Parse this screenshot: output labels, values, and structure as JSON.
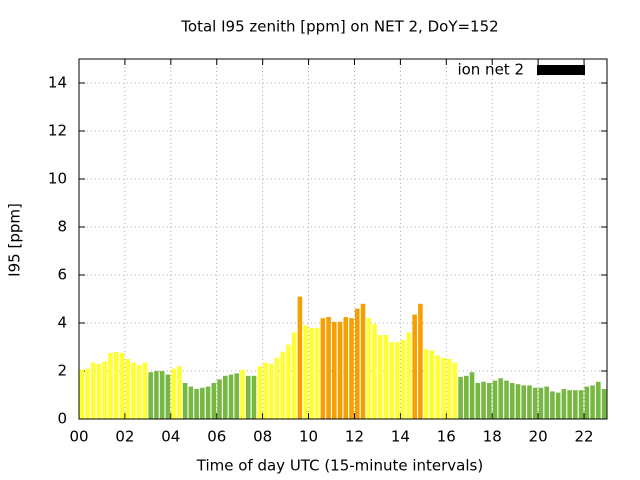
{
  "chart_data": {
    "type": "bar",
    "title": "Total I95 zenith [ppm] on NET 2, DoY=152",
    "xlabel": "Time of day UTC (15-minute intervals)",
    "ylabel": "I95 [ppm]",
    "x": [
      0,
      0.25,
      0.5,
      0.75,
      1,
      1.25,
      1.5,
      1.75,
      2,
      2.25,
      2.5,
      2.75,
      3,
      3.25,
      3.5,
      3.75,
      4,
      4.25,
      4.5,
      4.75,
      5,
      5.25,
      5.5,
      5.75,
      6,
      6.25,
      6.5,
      6.75,
      7,
      7.25,
      7.5,
      7.75,
      8,
      8.25,
      8.5,
      8.75,
      9,
      9.25,
      9.5,
      9.75,
      10,
      10.25,
      10.5,
      10.75,
      11,
      11.25,
      11.5,
      11.75,
      12,
      12.25,
      12.5,
      12.75,
      13,
      13.25,
      13.5,
      13.75,
      14,
      14.25,
      14.5,
      14.75,
      15,
      15.25,
      15.5,
      15.75,
      16,
      16.25,
      16.5,
      16.75,
      17,
      17.25,
      17.5,
      17.75,
      18,
      18.25,
      18.5,
      18.75,
      19,
      19.25,
      19.5,
      19.75,
      20,
      20.25,
      20.5,
      20.75,
      21,
      21.25,
      21.5,
      21.75,
      22,
      22.25,
      22.5,
      22.75
    ],
    "series": [
      {
        "name": "ion net 2",
        "color": "#000000",
        "values": [
          2.05,
          2.1,
          2.35,
          2.3,
          2.4,
          2.75,
          2.8,
          2.75,
          2.5,
          2.35,
          2.25,
          2.35,
          1.95,
          2.0,
          2.0,
          1.85,
          2.1,
          2.2,
          1.5,
          1.35,
          1.25,
          1.3,
          1.35,
          1.5,
          1.65,
          1.8,
          1.85,
          1.9,
          2.05,
          1.8,
          1.8,
          2.2,
          2.35,
          2.3,
          2.55,
          2.8,
          3.1,
          3.6,
          5.1,
          3.9,
          3.8,
          3.8,
          4.2,
          4.25,
          4.05,
          4.05,
          4.25,
          4.2,
          4.6,
          4.8,
          4.2,
          3.95,
          3.5,
          3.5,
          3.2,
          3.2,
          3.3,
          3.6,
          4.35,
          4.8,
          2.9,
          2.85,
          2.65,
          2.55,
          2.5,
          2.35,
          1.75,
          1.8,
          1.95,
          1.5,
          1.55,
          1.5,
          1.6,
          1.7,
          1.6,
          1.5,
          1.45,
          1.4,
          1.4,
          1.3,
          1.3,
          1.35,
          1.15,
          1.1,
          1.25,
          1.2,
          1.2,
          1.2,
          1.35,
          1.4,
          1.55,
          1.25
        ],
        "bar_colors": [
          "#ffff33",
          "#ffff33",
          "#ffff33",
          "#ffff33",
          "#ffff33",
          "#ffff33",
          "#ffff33",
          "#ffff33",
          "#ffff33",
          "#ffff33",
          "#ffff33",
          "#ffff33",
          "#77b843",
          "#77b843",
          "#77b843",
          "#77b843",
          "#ffff33",
          "#ffff33",
          "#77b843",
          "#77b843",
          "#77b843",
          "#77b843",
          "#77b843",
          "#77b843",
          "#77b843",
          "#77b843",
          "#77b843",
          "#77b843",
          "#ffff33",
          "#77b843",
          "#77b843",
          "#ffff33",
          "#ffff33",
          "#ffff33",
          "#ffff33",
          "#ffff33",
          "#ffff33",
          "#ffff33",
          "#f5a000",
          "#ffff33",
          "#ffff33",
          "#ffff33",
          "#f5a000",
          "#f5a000",
          "#f5a000",
          "#f5a000",
          "#f5a000",
          "#f5a000",
          "#f5a000",
          "#f5a000",
          "#ffff33",
          "#ffff33",
          "#ffff33",
          "#ffff33",
          "#ffff33",
          "#ffff33",
          "#ffff33",
          "#ffff33",
          "#f5a000",
          "#f5a000",
          "#ffff33",
          "#ffff33",
          "#ffff33",
          "#ffff33",
          "#ffff33",
          "#ffff33",
          "#77b843",
          "#77b843",
          "#77b843",
          "#77b843",
          "#77b843",
          "#77b843",
          "#77b843",
          "#77b843",
          "#77b843",
          "#77b843",
          "#77b843",
          "#77b843",
          "#77b843",
          "#77b843",
          "#77b843",
          "#77b843",
          "#77b843",
          "#77b843",
          "#77b843",
          "#77b843",
          "#77b843",
          "#77b843",
          "#77b843",
          "#77b843",
          "#77b843",
          "#77b843"
        ]
      }
    ],
    "xlim": [
      0,
      23
    ],
    "xticks": [
      {
        "value": 0,
        "label": "00"
      },
      {
        "value": 2,
        "label": "02"
      },
      {
        "value": 4,
        "label": "04"
      },
      {
        "value": 6,
        "label": "06"
      },
      {
        "value": 8,
        "label": "08"
      },
      {
        "value": 10,
        "label": "10"
      },
      {
        "value": 12,
        "label": "12"
      },
      {
        "value": 14,
        "label": "14"
      },
      {
        "value": 16,
        "label": "16"
      },
      {
        "value": 18,
        "label": "18"
      },
      {
        "value": 20,
        "label": "20"
      },
      {
        "value": 22,
        "label": "22"
      }
    ],
    "ylim": [
      0,
      15
    ],
    "yticks": [
      0,
      2,
      4,
      6,
      8,
      10,
      12,
      14
    ],
    "grid": true,
    "legend": "top-right"
  }
}
